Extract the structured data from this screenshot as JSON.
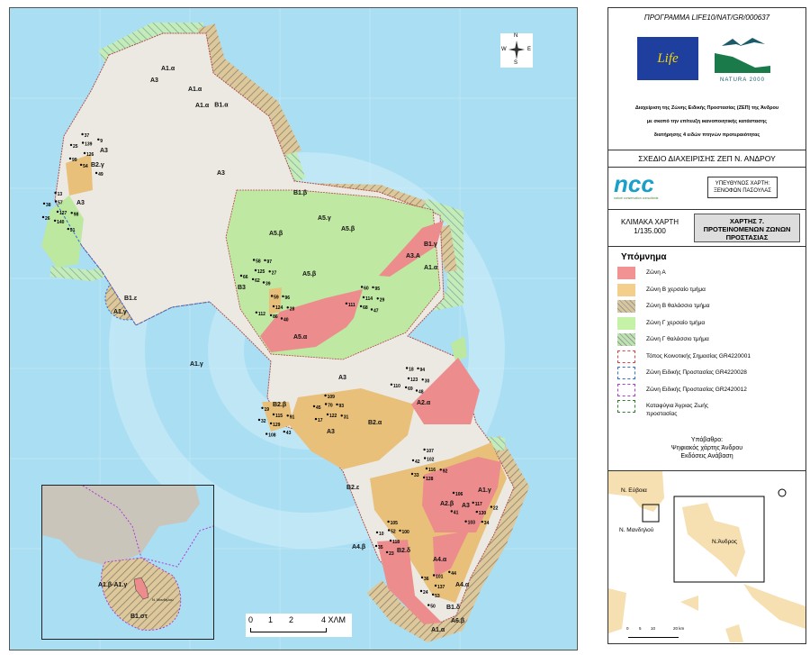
{
  "map": {
    "zone_labels": [
      "A1.α",
      "A3",
      "A1.α",
      "B1.α",
      "A1.α",
      "A3",
      "B2.γ",
      "A3",
      "B1.ε",
      "A1.γ",
      "A3",
      "B1.β",
      "A5.β",
      "A5.γ",
      "A5.β",
      "A5.β",
      "A3.A",
      "B1.γ",
      "A1.α",
      "A5.α",
      "B3",
      "A1.γ",
      "A3",
      "A3",
      "A2.α",
      "B2.α",
      "B2.β",
      "B2.ε",
      "A2.β",
      "A3",
      "A1.γ",
      "A4.β",
      "B2.δ",
      "A4.α",
      "A4.α",
      "B1.δ",
      "A1.α",
      "A6.β"
    ],
    "point_labels": [
      "126",
      "127",
      "125",
      "124",
      "114",
      "123",
      "122",
      "115",
      "116",
      "117",
      "118",
      "137",
      "139",
      "140",
      "62",
      "86",
      "68",
      "69",
      "70",
      "129",
      "128",
      "130",
      "52",
      "53",
      "54",
      "57",
      "58",
      "59",
      "60",
      "18",
      "17",
      "19",
      "102",
      "103",
      "100",
      "101",
      "99",
      "98",
      "97",
      "96",
      "95",
      "94",
      "93",
      "91",
      "92",
      "22",
      "23",
      "24",
      "25",
      "26",
      "27",
      "28",
      "29",
      "30",
      "31",
      "32",
      "33",
      "34",
      "35",
      "36",
      "37",
      "38",
      "39",
      "40",
      "47",
      "48",
      "45",
      "43",
      "42",
      "41",
      "10",
      "44",
      "9",
      "13",
      "66",
      "112",
      "111",
      "110",
      "109",
      "108",
      "107",
      "106",
      "105",
      "50",
      "49",
      "51"
    ],
    "inset": {
      "labels": [
        "A1.β-A1.γ",
        "B1.στ",
        "Ν. Μανδηλού"
      ]
    },
    "scale_bar": {
      "ticks": [
        "0",
        "1",
        "2",
        "4 ΧΛΜ"
      ]
    },
    "compass": {
      "labels": [
        "N",
        "E",
        "S",
        "W"
      ]
    }
  },
  "panel": {
    "programme": "ΠΡΟΓΡΑΜΜΑ LIFE10/NAT/GR/000637",
    "logos": {
      "life": "Life",
      "natura": "NATURA 2000",
      "ncc": "ncc",
      "ncc_sub": "nature conservation consultants"
    },
    "description": [
      "Διαχείριση της Ζώνης Ειδικής Προστασίας (ΖΕΠ) της Άνδρου",
      "με σκοπό την επίτευξη ικανοποιητικής κατάστασης",
      "διατήρησης 4 ειδών πτηνών προτεραιότητας"
    ],
    "plan_title": "ΣΧΕΔΙΟ ΔΙΑΧΕΙΡΙΣΗΣ ΖΕΠ Ν. ΑΝΔΡΟΥ",
    "responsible": [
      "ΥΠΕΥΘΥΝΟΣ ΧΑΡΤΗ:",
      "ΞΕΝΟΦΩΝ ΠΑΣΟΥΛΑΣ"
    ],
    "scale": [
      "ΚΛΙΜΑΚΑ ΧΑΡΤΗ",
      "1/135.000"
    ],
    "map_title": [
      "ΧΑΡΤΗΣ 7.",
      "ΠΡΟΤΕΙΝΟΜΕΝΩΝ ΖΩΝΩΝ",
      "ΠΡΟΣΤΑΣΙΑΣ"
    ],
    "legend": {
      "title": "Υπόμνημα",
      "items": [
        {
          "label": "Ζώνη Α",
          "color": "#f19393",
          "style": "fill"
        },
        {
          "label": "Ζώνη Β χερσαίο τμήμα",
          "color": "#f4cf8c",
          "style": "fill"
        },
        {
          "label": "Ζώνη Β θαλάσσιο τμήμα",
          "color": "#d9c59a",
          "style": "hatch"
        },
        {
          "label": "Ζώνη Γ χερσαίο τμήμα",
          "color": "#c6f2a8",
          "style": "fill"
        },
        {
          "label": "Ζώνη Γ θαλάσσιο τμήμα",
          "color": "#bde3b0",
          "style": "hatch"
        },
        {
          "label": "Τόπος Κοινοτικής Σημασίας GR4220001",
          "color": "#e04040",
          "style": "dashed"
        },
        {
          "label": "Ζώνη Ειδικής Προστασίας GR4220028",
          "color": "#2e6fd6",
          "style": "dashed"
        },
        {
          "label": "Ζώνη Ειδικής Προστασίας GR2420012",
          "color": "#b03ad6",
          "style": "dashed"
        },
        {
          "label": "Καταφύγια Άγριας Ζωής",
          "label2": "προστασίας",
          "color": "#2e7d2e",
          "style": "dashed"
        }
      ]
    },
    "basemap": [
      "Υπόβαθρο:",
      "Ψηφιακός χάρτης Άνδρου",
      "Εκδόσεις Ανάβαση"
    ],
    "locator": {
      "labels": [
        "Ν. Εύβοια",
        "Ν. Μανδηλού",
        "Ν.Άνδρος"
      ],
      "scale_ticks": [
        "0",
        "5",
        "10",
        "20 km"
      ]
    }
  }
}
